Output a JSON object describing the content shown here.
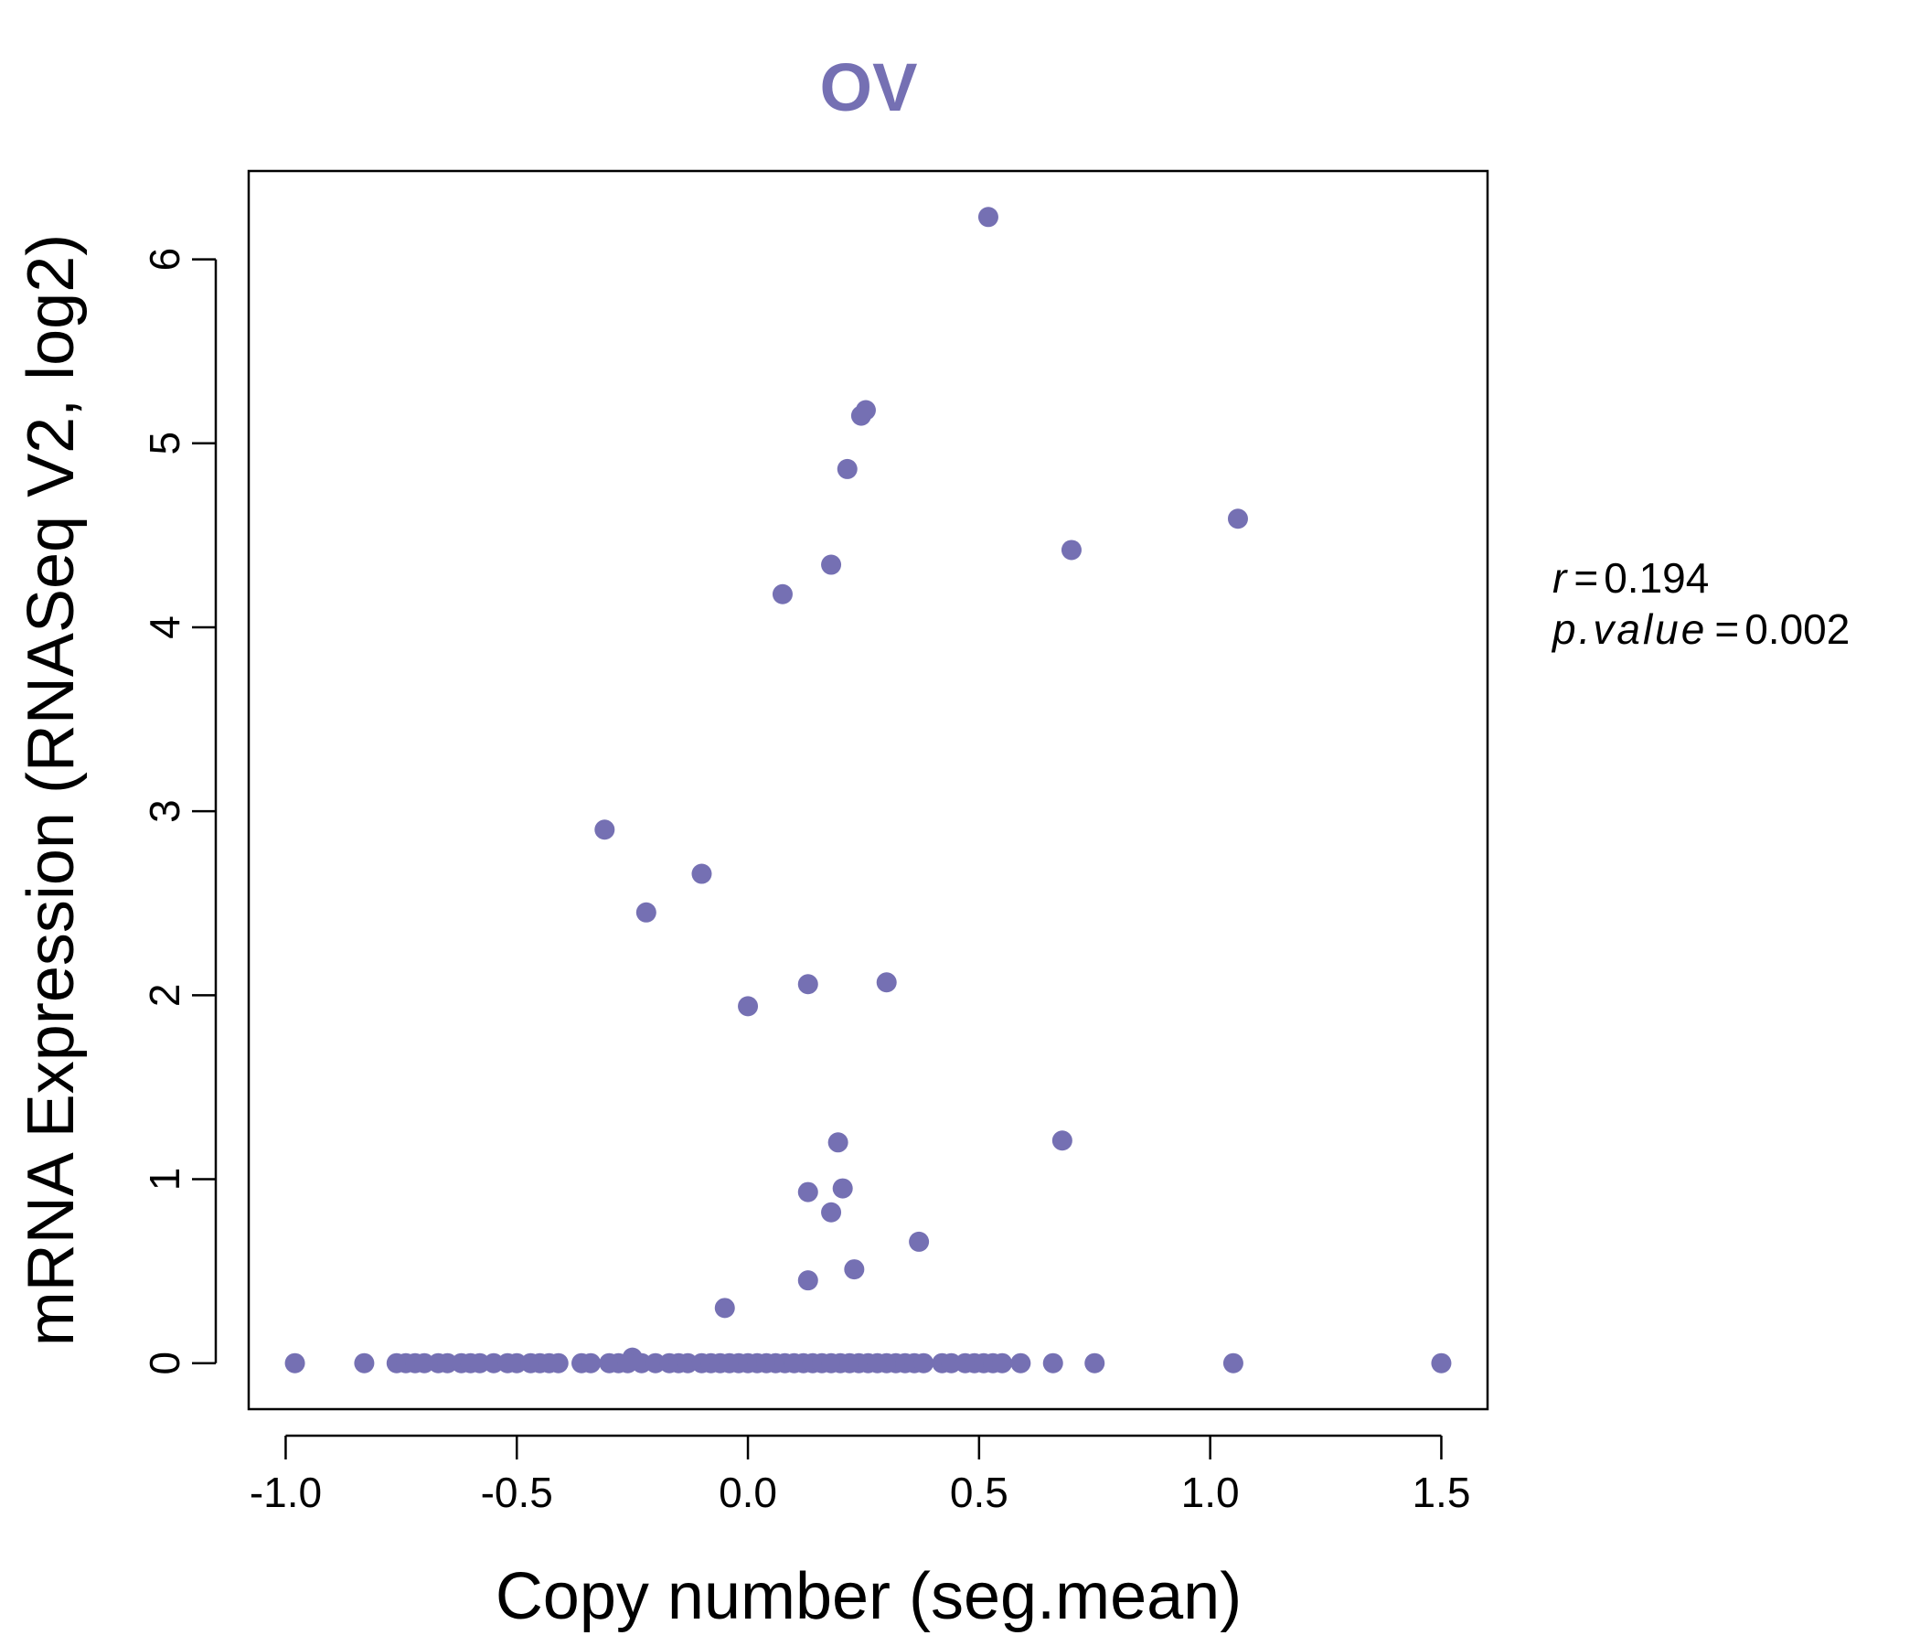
{
  "chart_data": {
    "type": "scatter",
    "title": "OV",
    "xlabel": "Copy number (seg.mean)",
    "ylabel": "mRNA Expression (RNASeq V2, log2)",
    "xlim": [
      -1.08,
      1.6
    ],
    "ylim": [
      -0.25,
      6.48
    ],
    "xticks": [
      -1.0,
      -0.5,
      0.0,
      0.5,
      1.0,
      1.5
    ],
    "xtick_labels": [
      "-1.0",
      "-0.5",
      "0.0",
      "0.5",
      "1.0",
      "1.5"
    ],
    "yticks": [
      0,
      1,
      2,
      3,
      4,
      5,
      6
    ],
    "ytick_labels": [
      "0",
      "1",
      "2",
      "3",
      "4",
      "5",
      "6"
    ],
    "color": "#7570b3",
    "grid": false,
    "legend": "none",
    "annotation": {
      "r_symbol": "r",
      "r_eq": "=",
      "r_value": "0.194",
      "p_symbol": "p.value",
      "p_eq": "=",
      "p_value": "0.002"
    },
    "points": [
      [
        0.52,
        6.23
      ],
      [
        0.255,
        5.18
      ],
      [
        0.245,
        5.15
      ],
      [
        0.215,
        4.86
      ],
      [
        1.06,
        4.59
      ],
      [
        0.7,
        4.42
      ],
      [
        0.18,
        4.34
      ],
      [
        0.075,
        4.18
      ],
      [
        -0.31,
        2.9
      ],
      [
        -0.1,
        2.66
      ],
      [
        -0.22,
        2.45
      ],
      [
        0.13,
        2.06
      ],
      [
        0.3,
        2.07
      ],
      [
        0.0,
        1.94
      ],
      [
        0.68,
        1.21
      ],
      [
        0.195,
        1.2
      ],
      [
        0.13,
        0.93
      ],
      [
        0.205,
        0.95
      ],
      [
        0.18,
        0.82
      ],
      [
        0.37,
        0.66
      ],
      [
        0.23,
        0.51
      ],
      [
        0.13,
        0.45
      ],
      [
        -0.05,
        0.3
      ],
      [
        -0.25,
        0.03
      ],
      [
        -0.98,
        0
      ],
      [
        -0.83,
        0
      ],
      [
        -0.76,
        0
      ],
      [
        -0.74,
        0
      ],
      [
        -0.72,
        0
      ],
      [
        -0.7,
        0
      ],
      [
        -0.67,
        0
      ],
      [
        -0.65,
        0
      ],
      [
        -0.62,
        0
      ],
      [
        -0.6,
        0
      ],
      [
        -0.58,
        0
      ],
      [
        -0.55,
        0
      ],
      [
        -0.52,
        0
      ],
      [
        -0.5,
        0
      ],
      [
        -0.47,
        0
      ],
      [
        -0.45,
        0
      ],
      [
        -0.43,
        0
      ],
      [
        -0.41,
        0
      ],
      [
        -0.36,
        0
      ],
      [
        -0.34,
        0
      ],
      [
        -0.3,
        0
      ],
      [
        -0.28,
        0
      ],
      [
        -0.26,
        0
      ],
      [
        -0.23,
        0
      ],
      [
        -0.2,
        0
      ],
      [
        -0.17,
        0
      ],
      [
        -0.15,
        0
      ],
      [
        -0.13,
        0
      ],
      [
        -0.1,
        0
      ],
      [
        -0.08,
        0
      ],
      [
        -0.06,
        0
      ],
      [
        -0.04,
        0
      ],
      [
        -0.02,
        0
      ],
      [
        0.0,
        0
      ],
      [
        0.02,
        0
      ],
      [
        0.04,
        0
      ],
      [
        0.06,
        0
      ],
      [
        0.08,
        0
      ],
      [
        0.1,
        0
      ],
      [
        0.12,
        0
      ],
      [
        0.14,
        0
      ],
      [
        0.16,
        0
      ],
      [
        0.18,
        0
      ],
      [
        0.2,
        0
      ],
      [
        0.22,
        0
      ],
      [
        0.24,
        0
      ],
      [
        0.26,
        0
      ],
      [
        0.28,
        0
      ],
      [
        0.3,
        0
      ],
      [
        0.32,
        0
      ],
      [
        0.34,
        0
      ],
      [
        0.36,
        0
      ],
      [
        0.38,
        0
      ],
      [
        0.42,
        0
      ],
      [
        0.44,
        0
      ],
      [
        0.47,
        0
      ],
      [
        0.49,
        0
      ],
      [
        0.51,
        0
      ],
      [
        0.53,
        0
      ],
      [
        0.55,
        0
      ],
      [
        0.59,
        0
      ],
      [
        0.66,
        0
      ],
      [
        0.75,
        0
      ],
      [
        1.05,
        0
      ],
      [
        1.5,
        0
      ]
    ]
  }
}
